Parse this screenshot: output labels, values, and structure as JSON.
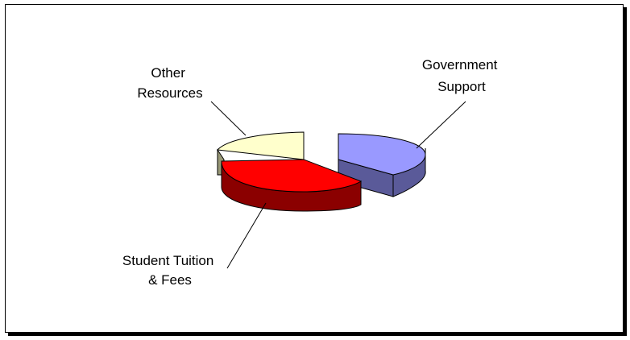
{
  "chart_data": {
    "type": "pie",
    "title": "",
    "three_d": true,
    "exploded": true,
    "slices": [
      {
        "label_lines": [
          "Government",
          "Support"
        ],
        "value": 29,
        "color": "#9999ff",
        "side_color": "#5a5a99"
      },
      {
        "label_lines": [
          "Student Tuition",
          "& Fees"
        ],
        "value": 37,
        "color": "#ff0000",
        "side_color": "#8b0000"
      },
      {
        "label_lines": [
          "Other",
          "Resources"
        ],
        "value": 34,
        "color": "#ffffcc",
        "side_color": "#999977"
      }
    ],
    "legend": "none"
  }
}
